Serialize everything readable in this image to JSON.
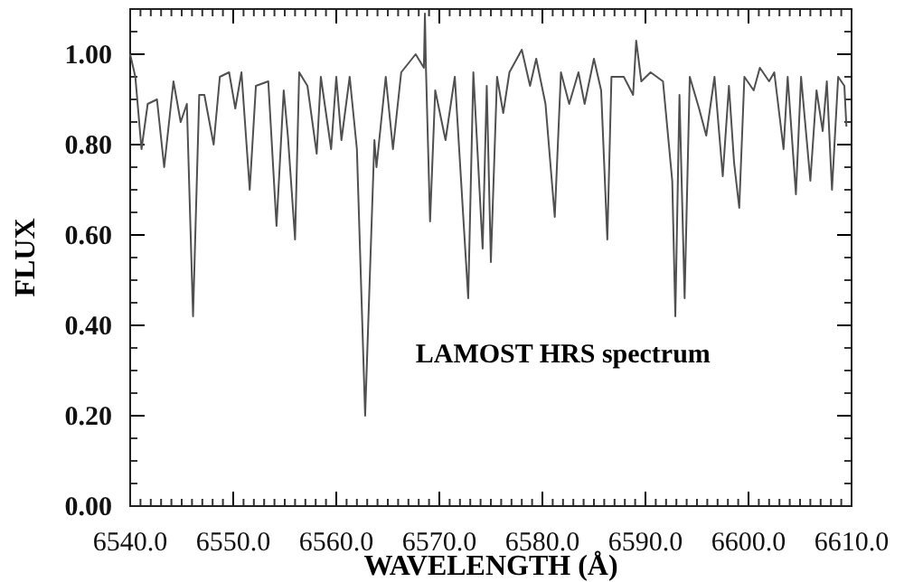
{
  "chart_data": {
    "type": "line",
    "xlabel": "WAVELENGTH  (Å)",
    "ylabel": "FLUX",
    "annotations": [
      "LAMOST HRS spectrum"
    ],
    "xlim": [
      6540,
      6610
    ],
    "ylim": [
      0,
      1.1
    ],
    "xticks": [
      {
        "value": 6540,
        "label": "6540.0"
      },
      {
        "value": 6550,
        "label": "6550.0"
      },
      {
        "value": 6560,
        "label": "6560.0"
      },
      {
        "value": 6570,
        "label": "6570.0"
      },
      {
        "value": 6580,
        "label": "6580.0"
      },
      {
        "value": 6590,
        "label": "6590.0"
      },
      {
        "value": 6600,
        "label": "6600.0"
      },
      {
        "value": 6610,
        "label": "6610.0"
      }
    ],
    "yticks": [
      {
        "value": 0,
        "label": "0.00"
      },
      {
        "value": 0.2,
        "label": "0.20"
      },
      {
        "value": 0.4,
        "label": "0.40"
      },
      {
        "value": 0.6,
        "label": "0.60"
      },
      {
        "value": 0.8,
        "label": "0.80"
      },
      {
        "value": 1,
        "label": "1.00"
      }
    ],
    "grid": false,
    "marker": "none",
    "line_style": "solid",
    "series": [
      {
        "color": "#505050",
        "x": [
          6540,
          6540.5,
          6541.1,
          6541.7,
          6542.6,
          6543.3,
          6544.2,
          6544.9,
          6545.5,
          6546.1,
          6546.7,
          6547.2,
          6548.1,
          6548.7,
          6549.6,
          6550.2,
          6550.8,
          6551.6,
          6552.2,
          6553.4,
          6554.2,
          6554.9,
          6555.3,
          6556,
          6556.4,
          6557.2,
          6558.1,
          6558.5,
          6559.5,
          6560,
          6560.5,
          6561.3,
          6562,
          6562.8,
          6563.7,
          6563.9,
          6564.8,
          6565.5,
          6566.3,
          6567.7,
          6568.5,
          6568.6,
          6568.7,
          6569.1,
          6569.6,
          6570.6,
          6571.5,
          6572.8,
          6573.3,
          6574.2,
          6574.6,
          6575,
          6575.6,
          6576.2,
          6576.8,
          6578,
          6578.8,
          6579.4,
          6580.3,
          6581.2,
          6581.8,
          6582.6,
          6583.5,
          6584.1,
          6585,
          6585.7,
          6586.3,
          6586.7,
          6587.9,
          6588.8,
          6589.1,
          6589.6,
          6590.5,
          6591.7,
          6592.6,
          6592.9,
          6593.3,
          6593.8,
          6594.3,
          6595.2,
          6595.9,
          6596.7,
          6597.5,
          6598.1,
          6598.6,
          6599.1,
          6599.6,
          6600.5,
          6601.1,
          6602,
          6602.5,
          6603.4,
          6603.8,
          6604.6,
          6605.1,
          6606,
          6606.6,
          6607.2,
          6607.6,
          6608.1,
          6608.7,
          6609.3,
          6609.5
        ],
        "values": [
          1,
          0.95,
          0.79,
          0.89,
          0.9,
          0.75,
          0.94,
          0.85,
          0.89,
          0.42,
          0.91,
          0.91,
          0.8,
          0.95,
          0.96,
          0.88,
          0.96,
          0.7,
          0.93,
          0.94,
          0.62,
          0.92,
          0.82,
          0.59,
          0.96,
          0.93,
          0.78,
          0.95,
          0.79,
          0.95,
          0.81,
          0.95,
          0.79,
          0.2,
          0.81,
          0.75,
          0.95,
          0.79,
          0.96,
          1,
          0.97,
          1.09,
          0.97,
          0.63,
          0.92,
          0.81,
          0.95,
          0.46,
          0.96,
          0.57,
          0.93,
          0.54,
          0.95,
          0.87,
          0.96,
          1.01,
          0.93,
          0.99,
          0.89,
          0.64,
          0.96,
          0.89,
          0.96,
          0.89,
          0.99,
          0.92,
          0.59,
          0.95,
          0.95,
          0.91,
          1.03,
          0.94,
          0.96,
          0.94,
          0.72,
          0.42,
          0.91,
          0.46,
          0.95,
          0.88,
          0.82,
          0.95,
          0.73,
          0.93,
          0.76,
          0.66,
          0.95,
          0.92,
          0.97,
          0.94,
          0.96,
          0.79,
          0.95,
          0.69,
          0.95,
          0.72,
          0.92,
          0.83,
          0.94,
          0.7,
          0.95,
          0.93,
          0.84
        ]
      }
    ]
  }
}
